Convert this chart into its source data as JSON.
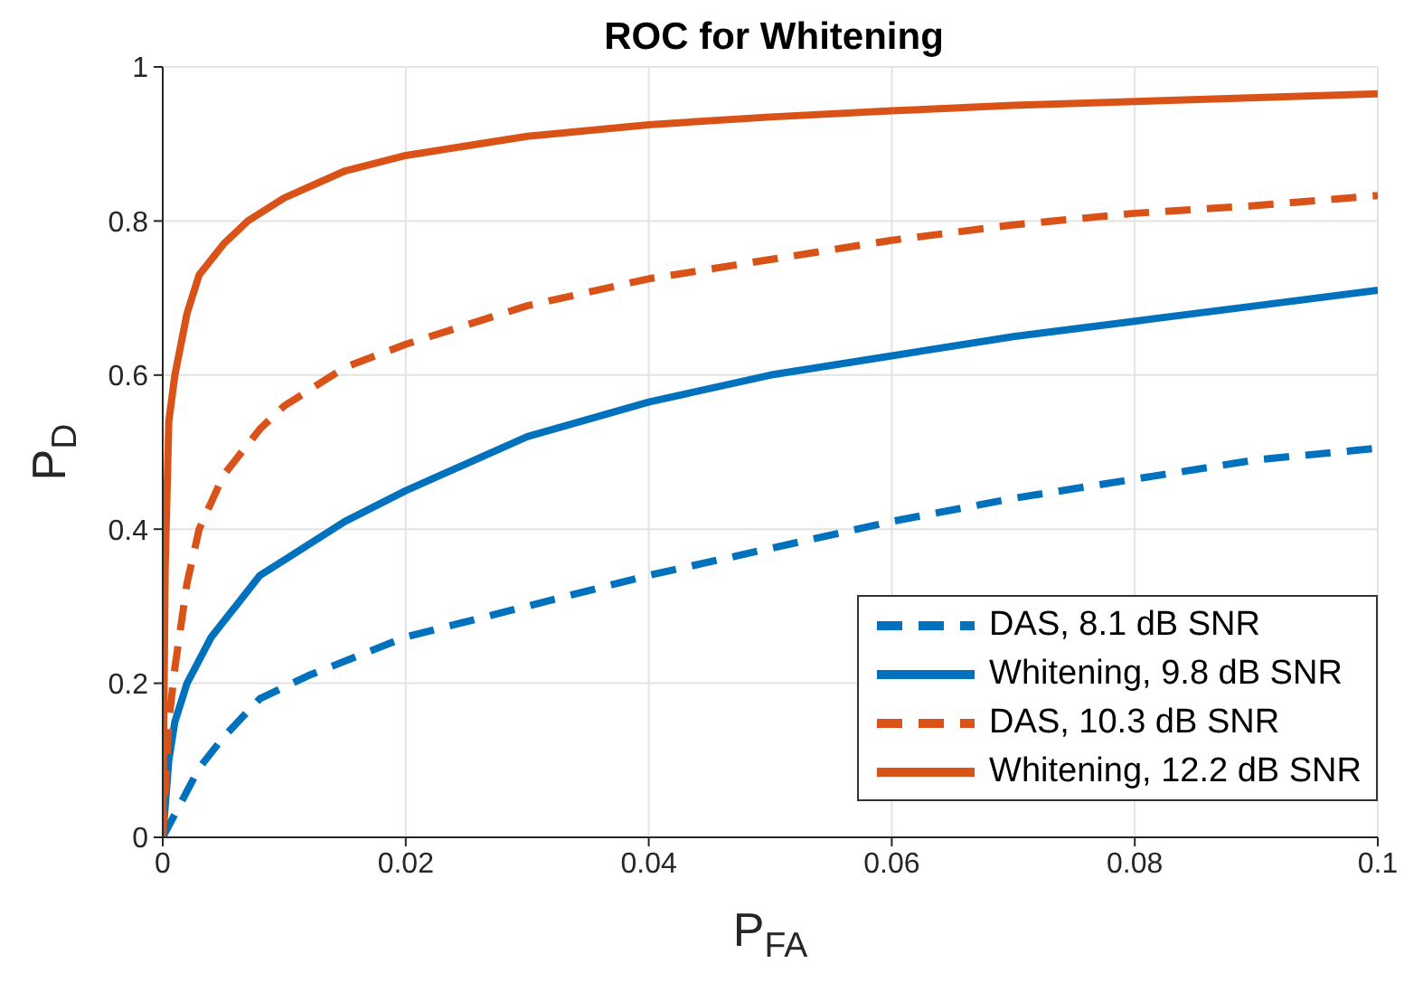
{
  "chart_data": {
    "type": "line",
    "title": "ROC for Whitening",
    "xlabel": "P$_{FA}$",
    "ylabel": "P$_{D}$",
    "xlim": [
      0,
      0.1
    ],
    "xticks": [
      0,
      0.02,
      0.04,
      0.06,
      0.08,
      0.1
    ],
    "ylim": [
      0,
      1
    ],
    "yticks": [
      0,
      0.2,
      0.4,
      0.6,
      0.8,
      1
    ],
    "grid": true,
    "legend": "bottom right",
    "marker": "none",
    "series": [
      {
        "name": "DAS, 8.1 dB SNR",
        "color": "#0072bd",
        "line_style": "dashed",
        "x": [
          0,
          0.001,
          0.003,
          0.005,
          0.008,
          0.012,
          0.02,
          0.03,
          0.04,
          0.05,
          0.06,
          0.07,
          0.08,
          0.09,
          0.1
        ],
        "values": [
          0,
          0.03,
          0.09,
          0.13,
          0.18,
          0.21,
          0.26,
          0.3,
          0.34,
          0.375,
          0.41,
          0.44,
          0.465,
          0.49,
          0.505
        ]
      },
      {
        "name": "Whitening, 9.8 dB SNR",
        "color": "#0072bd",
        "line_style": "solid",
        "x": [
          0,
          0.0005,
          0.001,
          0.002,
          0.004,
          0.006,
          0.008,
          0.01,
          0.015,
          0.02,
          0.03,
          0.04,
          0.05,
          0.06,
          0.07,
          0.08,
          0.09,
          0.1
        ],
        "values": [
          0,
          0.1,
          0.15,
          0.2,
          0.26,
          0.3,
          0.34,
          0.36,
          0.41,
          0.45,
          0.52,
          0.565,
          0.6,
          0.625,
          0.65,
          0.67,
          0.69,
          0.71
        ]
      },
      {
        "name": "DAS, 10.3 dB SNR",
        "color": "#d95319",
        "line_style": "dashed",
        "x": [
          0,
          0.0005,
          0.001,
          0.002,
          0.003,
          0.005,
          0.008,
          0.01,
          0.015,
          0.02,
          0.03,
          0.04,
          0.05,
          0.06,
          0.07,
          0.08,
          0.09,
          0.1
        ],
        "values": [
          0,
          0.15,
          0.22,
          0.33,
          0.4,
          0.47,
          0.53,
          0.56,
          0.61,
          0.64,
          0.69,
          0.725,
          0.75,
          0.775,
          0.795,
          0.81,
          0.82,
          0.833
        ]
      },
      {
        "name": "Whitening, 12.2 dB SNR",
        "color": "#d95319",
        "line_style": "solid",
        "x": [
          0,
          0.0002,
          0.0005,
          0.001,
          0.002,
          0.003,
          0.005,
          0.007,
          0.01,
          0.015,
          0.02,
          0.03,
          0.04,
          0.05,
          0.06,
          0.07,
          0.08,
          0.09,
          0.1
        ],
        "values": [
          0,
          0.35,
          0.54,
          0.6,
          0.68,
          0.73,
          0.77,
          0.8,
          0.83,
          0.865,
          0.885,
          0.91,
          0.925,
          0.935,
          0.943,
          0.95,
          0.955,
          0.96,
          0.965
        ]
      }
    ]
  }
}
